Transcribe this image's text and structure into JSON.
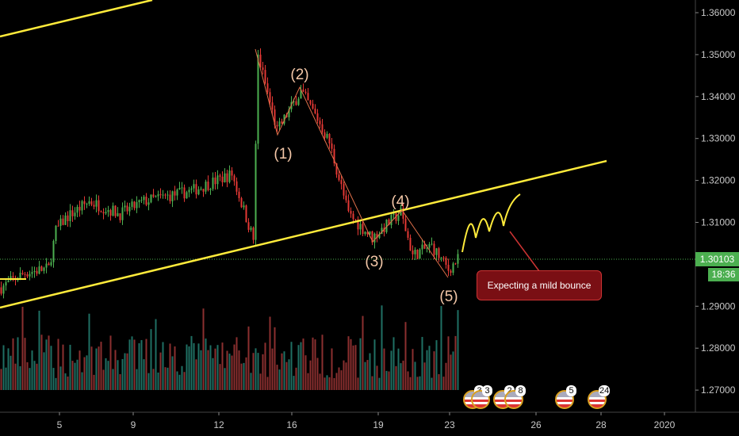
{
  "chart_data": {
    "type": "candlestick",
    "y_axis_ticks": [
      "1.36000",
      "1.35000",
      "1.34000",
      "1.33000",
      "1.32000",
      "1.31000",
      "1.29000",
      "1.28000",
      "1.27000"
    ],
    "ylim": [
      1.2635,
      1.3635
    ],
    "x_axis_ticks": [
      "5",
      "9",
      "12",
      "16",
      "19",
      "23",
      "26",
      "28",
      "2020"
    ],
    "price_path": [
      [
        0,
        1.2945
      ],
      [
        10,
        1.298
      ],
      [
        20,
        1.299
      ],
      [
        23,
        1.308
      ],
      [
        27,
        1.311
      ],
      [
        37,
        1.315
      ],
      [
        50,
        1.312
      ],
      [
        60,
        1.315
      ],
      [
        80,
        1.3175
      ],
      [
        97,
        1.3215
      ],
      [
        106,
        1.306
      ],
      [
        108,
        1.3498
      ],
      [
        116,
        1.3318
      ],
      [
        126,
        1.3413
      ],
      [
        133,
        1.3347
      ],
      [
        138,
        1.329
      ],
      [
        146,
        1.312
      ],
      [
        156,
        1.3063
      ],
      [
        168,
        1.3124
      ],
      [
        173,
        1.3022
      ],
      [
        181,
        1.3044
      ],
      [
        188,
        1.2987
      ],
      [
        192,
        1.3012
      ]
    ],
    "last_price": "1.30103",
    "bar_countdown": "18:36",
    "up_color": "#26a69a",
    "down_color": "#ef5350",
    "candle_up": "#4caf50",
    "candle_down": "#e53935",
    "annotations": {
      "waves": [
        "(1)",
        "(2)",
        "(3)",
        "(4)",
        "(5)"
      ],
      "note": "Expecting a mild bounce",
      "trendline_color": "#ffeb3b"
    },
    "events": [
      "3",
      "3",
      "2",
      "8",
      "5",
      "24"
    ]
  }
}
